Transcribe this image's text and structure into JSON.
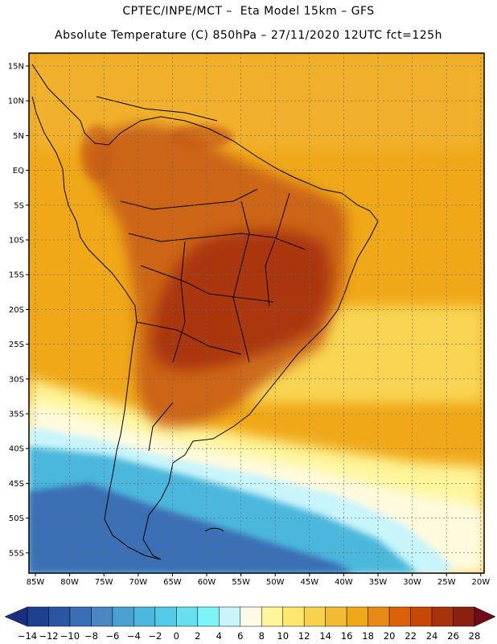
{
  "header": {
    "line1": "CPTEC/INPE/MCT –  Eta Model 15km – GFS",
    "line2": "Absolute Temperature (C) 850hPa – 27/11/2020 12UTC fct=125h"
  },
  "axes": {
    "lat_labels": [
      "15N",
      "10N",
      "5N",
      "EQ",
      "5S",
      "10S",
      "15S",
      "20S",
      "25S",
      "30S",
      "35S",
      "40S",
      "45S",
      "50S",
      "55S"
    ],
    "lon_labels": [
      "85W",
      "80W",
      "75W",
      "70W",
      "65W",
      "60W",
      "55W",
      "50W",
      "45W",
      "40W",
      "35W",
      "30W",
      "25W",
      "20W"
    ]
  },
  "colorbar": {
    "labels": [
      "-14",
      "-12",
      "-10",
      "-8",
      "-6",
      "-4",
      "-2",
      "0",
      "2",
      "4",
      "6",
      "8",
      "10",
      "12",
      "14",
      "16",
      "18",
      "20",
      "22",
      "24",
      "26",
      "28"
    ],
    "colors": [
      "#1f3f8f",
      "#2b56a3",
      "#3a6fb5",
      "#4a86c4",
      "#4aa0d0",
      "#4bb7dc",
      "#53cbe6",
      "#66dfef",
      "#7df5f7",
      "#c8f4fb",
      "#fffbe6",
      "#fff59a",
      "#fde86d",
      "#f8d24c",
      "#f2bb33",
      "#f0a818",
      "#e88a14",
      "#dc6208",
      "#c64806",
      "#a8320a",
      "#8a2010"
    ],
    "low_arrow_color": "#1a2f80",
    "high_arrow_color": "#6e0a1a"
  },
  "map": {
    "ocean_warm_color": "#f0a818",
    "land_hot_color": "#c65a14",
    "core_hot_color": "#a8320a",
    "cool_ocean_color": "#4bb7dc",
    "cold_ocean_color": "#3a6fb5"
  }
}
